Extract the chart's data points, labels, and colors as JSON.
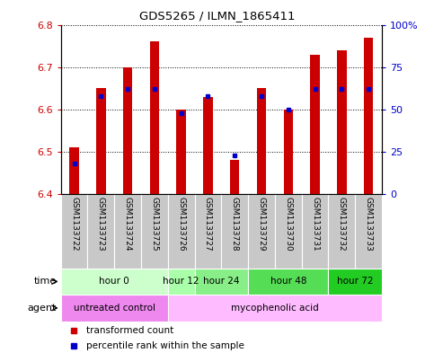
{
  "title": "GDS5265 / ILMN_1865411",
  "samples": [
    "GSM1133722",
    "GSM1133723",
    "GSM1133724",
    "GSM1133725",
    "GSM1133726",
    "GSM1133727",
    "GSM1133728",
    "GSM1133729",
    "GSM1133730",
    "GSM1133731",
    "GSM1133732",
    "GSM1133733"
  ],
  "transformed_counts": [
    6.51,
    6.65,
    6.7,
    6.76,
    6.6,
    6.63,
    6.48,
    6.65,
    6.6,
    6.73,
    6.74,
    6.77
  ],
  "percentile_ranks": [
    18,
    58,
    62,
    62,
    48,
    58,
    23,
    58,
    50,
    62,
    62,
    62
  ],
  "bar_bottom": 6.4,
  "ylim": [
    6.4,
    6.8
  ],
  "ylim_right": [
    0,
    100
  ],
  "bar_color": "#cc0000",
  "dot_color": "#0000cc",
  "bar_width": 0.35,
  "time_groups": [
    {
      "label": "hour 0",
      "start": 0,
      "end": 3,
      "color": "#ccffcc"
    },
    {
      "label": "hour 12",
      "start": 4,
      "end": 4,
      "color": "#aaffaa"
    },
    {
      "label": "hour 24",
      "start": 5,
      "end": 6,
      "color": "#88ee88"
    },
    {
      "label": "hour 48",
      "start": 7,
      "end": 9,
      "color": "#55dd55"
    },
    {
      "label": "hour 72",
      "start": 10,
      "end": 11,
      "color": "#22cc22"
    }
  ],
  "agent_groups": [
    {
      "label": "untreated control",
      "start": 0,
      "end": 3,
      "color": "#ee88ee"
    },
    {
      "label": "mycophenolic acid",
      "start": 4,
      "end": 11,
      "color": "#ffbbff"
    }
  ],
  "left_axis_color": "#cc0000",
  "right_axis_color": "#0000cc",
  "legend_items": [
    {
      "label": "transformed count",
      "color": "#cc0000"
    },
    {
      "label": "percentile rank within the sample",
      "color": "#0000cc"
    }
  ],
  "sample_box_color": "#c8c8c8",
  "yticks": [
    6.4,
    6.5,
    6.6,
    6.7,
    6.8
  ],
  "right_yticks": [
    0,
    25,
    50,
    75,
    100
  ],
  "right_yticklabels": [
    "0",
    "25",
    "50",
    "75",
    "100%"
  ]
}
